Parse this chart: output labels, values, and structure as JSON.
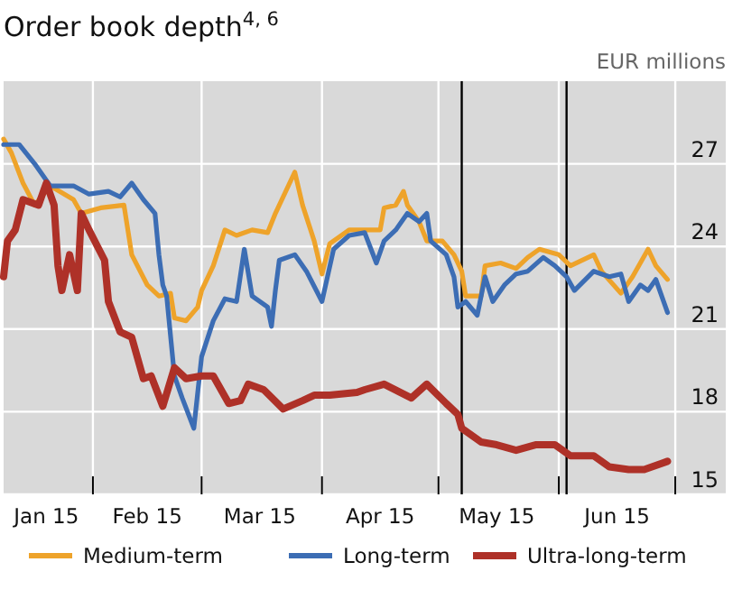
{
  "chart_data": {
    "type": "line",
    "title": "Order book depth$^{4, 6}$",
    "ylabel": "EUR millions",
    "xlim": [
      "2015-01-09",
      "2015-07-14"
    ],
    "ylim": [
      15,
      30
    ],
    "yticks": [
      15,
      18,
      21,
      24,
      27
    ],
    "xticks": [
      {
        "value": "2015-02-01",
        "label": null
      },
      {
        "value": "2015-03-01",
        "label": null
      },
      {
        "value": "2015-04-01",
        "label": null
      },
      {
        "value": "2015-05-01",
        "label": null
      },
      {
        "value": "2015-06-01",
        "label": null
      },
      {
        "value": "2015-07-01",
        "label": null
      },
      {
        "value": "2015-01-20",
        "label": "Jan 15"
      },
      {
        "value": "2015-02-15",
        "label": "Feb 15"
      },
      {
        "value": "2015-03-16",
        "label": "Mar 15"
      },
      {
        "value": "2015-04-16",
        "label": "Apr 15"
      },
      {
        "value": "2015-05-16",
        "label": "May 15"
      },
      {
        "value": "2015-06-16",
        "label": "Jun 15"
      }
    ],
    "grid": true,
    "legend": "bottom",
    "line_style": "solid",
    "marker": "none",
    "ref_lines": [
      {
        "axis": "x",
        "value": "2015-05-07",
        "label": null,
        "color": "#000000"
      },
      {
        "axis": "x",
        "value": "2015-06-03",
        "label": null,
        "color": "#000000"
      }
    ],
    "series": [
      {
        "name": "Medium-term",
        "color": "#eea32a",
        "x": [
          "2015-01-09",
          "2015-01-11",
          "2015-01-14",
          "2015-01-17",
          "2015-01-21",
          "2015-01-27",
          "2015-01-29",
          "2015-02-03",
          "2015-02-09",
          "2015-02-11",
          "2015-02-15",
          "2015-02-18",
          "2015-02-21",
          "2015-02-22",
          "2015-02-25",
          "2015-02-28",
          "2015-03-01",
          "2015-03-04",
          "2015-03-07",
          "2015-03-10",
          "2015-03-14",
          "2015-03-18",
          "2015-03-20",
          "2015-03-25",
          "2015-03-27",
          "2015-03-30",
          "2015-04-01",
          "2015-04-03",
          "2015-04-08",
          "2015-04-12",
          "2015-04-16",
          "2015-04-17",
          "2015-04-20",
          "2015-04-22",
          "2015-04-23",
          "2015-04-26",
          "2015-04-28",
          "2015-05-02",
          "2015-05-05",
          "2015-05-07",
          "2015-05-08",
          "2015-05-12",
          "2015-05-13",
          "2015-05-17",
          "2015-05-21",
          "2015-05-24",
          "2015-05-27",
          "2015-06-01",
          "2015-06-04",
          "2015-06-10",
          "2015-06-12",
          "2015-06-17",
          "2015-06-20",
          "2015-06-24",
          "2015-06-26",
          "2015-06-29"
        ],
        "values": [
          27.9,
          27.4,
          26.3,
          25.5,
          26.2,
          25.7,
          25.2,
          25.4,
          25.5,
          23.7,
          22.6,
          22.2,
          22.3,
          21.4,
          21.3,
          21.8,
          22.4,
          23.3,
          24.6,
          24.4,
          24.6,
          24.5,
          25.2,
          26.7,
          25.5,
          24.2,
          23.0,
          24.1,
          24.6,
          24.6,
          24.6,
          25.4,
          25.5,
          26.0,
          25.5,
          24.9,
          24.2,
          24.2,
          23.7,
          23.1,
          22.2,
          22.2,
          23.3,
          23.4,
          23.2,
          23.6,
          23.9,
          23.7,
          23.3,
          23.7,
          23.1,
          22.3,
          22.9,
          23.9,
          23.3,
          22.8
        ]
      },
      {
        "name": "Long-term",
        "color": "#3c6db4",
        "x": [
          "2015-01-09",
          "2015-01-13",
          "2015-01-17",
          "2015-01-21",
          "2015-01-27",
          "2015-01-31",
          "2015-02-05",
          "2015-02-08",
          "2015-02-11",
          "2015-02-14",
          "2015-02-17",
          "2015-02-18",
          "2015-02-19",
          "2015-02-20",
          "2015-02-22",
          "2015-02-24",
          "2015-02-27",
          "2015-03-01",
          "2015-03-04",
          "2015-03-07",
          "2015-03-10",
          "2015-03-12",
          "2015-03-14",
          "2015-03-18",
          "2015-03-19",
          "2015-03-20",
          "2015-03-21",
          "2015-03-25",
          "2015-03-28",
          "2015-04-01",
          "2015-04-04",
          "2015-04-08",
          "2015-04-12",
          "2015-04-15",
          "2015-04-17",
          "2015-04-20",
          "2015-04-23",
          "2015-04-26",
          "2015-04-28",
          "2015-04-29",
          "2015-05-03",
          "2015-05-05",
          "2015-05-06",
          "2015-05-08",
          "2015-05-11",
          "2015-05-13",
          "2015-05-15",
          "2015-05-18",
          "2015-05-21",
          "2015-05-24",
          "2015-05-28",
          "2015-05-31",
          "2015-06-03",
          "2015-06-05",
          "2015-06-10",
          "2015-06-14",
          "2015-06-17",
          "2015-06-19",
          "2015-06-22",
          "2015-06-24",
          "2015-06-26",
          "2015-06-27",
          "2015-06-29"
        ],
        "values": [
          27.7,
          27.7,
          27.0,
          26.2,
          26.2,
          25.9,
          26.0,
          25.8,
          26.3,
          25.7,
          25.2,
          23.7,
          22.6,
          22.2,
          19.3,
          18.5,
          17.4,
          20.0,
          21.3,
          22.1,
          22.0,
          23.9,
          22.2,
          21.8,
          21.1,
          22.4,
          23.5,
          23.7,
          23.1,
          22.0,
          23.9,
          24.4,
          24.5,
          23.4,
          24.2,
          24.6,
          25.2,
          24.9,
          25.2,
          24.2,
          23.7,
          22.9,
          21.8,
          22.0,
          21.5,
          22.9,
          22.0,
          22.6,
          23.0,
          23.1,
          23.6,
          23.3,
          22.9,
          22.4,
          23.1,
          22.9,
          23.0,
          22.0,
          22.6,
          22.4,
          22.8,
          22.4,
          21.6
        ]
      },
      {
        "name": "Ultra-long-term",
        "color": "#ae3128",
        "x": [
          "2015-01-09",
          "2015-01-10",
          "2015-01-12",
          "2015-01-14",
          "2015-01-18",
          "2015-01-20",
          "2015-01-22",
          "2015-01-23",
          "2015-01-24",
          "2015-01-26",
          "2015-01-28",
          "2015-01-29",
          "2015-01-31",
          "2015-02-04",
          "2015-02-05",
          "2015-02-08",
          "2015-02-11",
          "2015-02-14",
          "2015-02-16",
          "2015-02-19",
          "2015-02-22",
          "2015-02-25",
          "2015-03-01",
          "2015-03-04",
          "2015-03-08",
          "2015-03-11",
          "2015-03-13",
          "2015-03-17",
          "2015-03-22",
          "2015-03-27",
          "2015-03-30",
          "2015-04-03",
          "2015-04-10",
          "2015-04-12",
          "2015-04-17",
          "2015-04-24",
          "2015-04-28",
          "2015-05-03",
          "2015-05-06",
          "2015-05-07",
          "2015-05-12",
          "2015-05-16",
          "2015-05-21",
          "2015-05-26",
          "2015-05-31",
          "2015-06-04",
          "2015-06-10",
          "2015-06-14",
          "2015-06-19",
          "2015-06-23",
          "2015-06-29"
        ],
        "values": [
          22.9,
          24.2,
          24.6,
          25.7,
          25.5,
          26.3,
          25.5,
          23.3,
          22.4,
          23.7,
          22.4,
          25.2,
          24.6,
          23.5,
          22.0,
          20.9,
          20.7,
          19.2,
          19.3,
          18.2,
          19.6,
          19.2,
          19.3,
          19.3,
          18.3,
          18.4,
          19.0,
          18.8,
          18.1,
          18.4,
          18.6,
          18.6,
          18.7,
          18.8,
          19.0,
          18.5,
          19.0,
          18.3,
          17.9,
          17.4,
          16.9,
          16.8,
          16.6,
          16.8,
          16.8,
          16.4,
          16.4,
          16.0,
          15.9,
          15.9,
          16.2
        ]
      }
    ]
  }
}
